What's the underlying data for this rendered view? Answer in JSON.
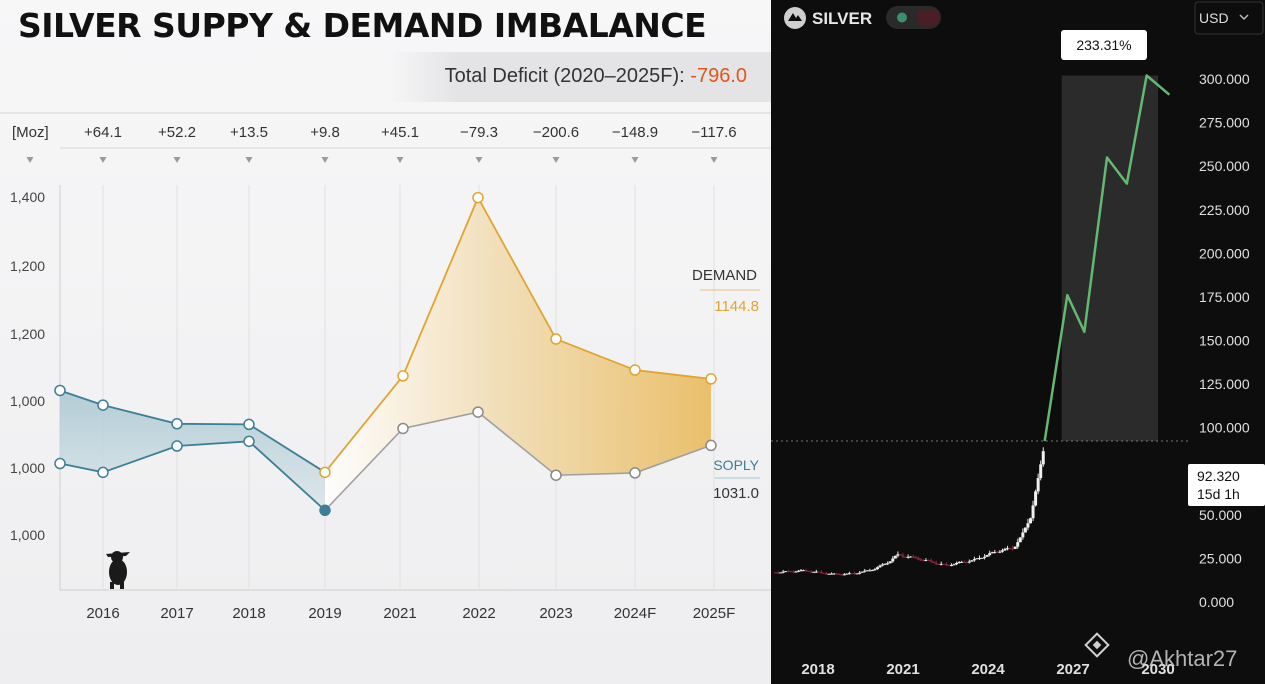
{
  "left_panel": {
    "title": "SILVER SUPPY & DEMAND IMBALANCE",
    "deficit_label": "Total Deficit (2020–2025F):",
    "deficit_value": "-796.0",
    "unit_label": "[Moz]",
    "demand_label": "DEMAND",
    "demand_last_value": "1144.8",
    "supply_label": "SOPLY",
    "supply_last_value": "1031.0"
  },
  "right_panel": {
    "symbol": "SILVER",
    "currency": "USD",
    "percent_badge": "233.31%",
    "price": "92.320",
    "countdown": "15d 1h",
    "watermark": "@Akhtar27"
  },
  "chart_data": [
    {
      "type": "area",
      "title": "SILVER SUPPY & DEMAND IMBALANCE",
      "ylabel": "[Moz]",
      "categories": [
        "2016",
        "2017",
        "2018",
        "2019",
        "2021",
        "2022",
        "2023",
        "2024F",
        "2025F"
      ],
      "ytick_labels": [
        "1,400",
        "1,200",
        "1,200",
        "1,000",
        "1,000",
        "1,000"
      ],
      "ylim": [
        900,
        1480
      ],
      "imbalance_labels": [
        "+64.1",
        "+52.2",
        "+13.5",
        "+9.8",
        "+45.1",
        "−79.3",
        "−200.6",
        "−148.9",
        "−117.6"
      ],
      "series": [
        {
          "name": "DEMAND",
          "x": [
            2015.4,
            2016,
            2017,
            2018,
            2019,
            2021,
            2022,
            2023,
            2024,
            2025
          ],
          "values": [
            1125,
            1100,
            1068,
            1067,
            985,
            1150,
            1455,
            1213,
            1160,
            1144.8
          ],
          "color": "#e0a530"
        },
        {
          "name": "SOPLY",
          "x": [
            2015.4,
            2016,
            2017,
            2018,
            2019,
            2021,
            2022,
            2023,
            2024,
            2025
          ],
          "values": [
            1000,
            985,
            1030,
            1038,
            920,
            1060,
            1088,
            980,
            984,
            1031.0
          ],
          "color": "#3d7f96"
        }
      ]
    },
    {
      "type": "line",
      "title": "SILVER",
      "x_tick_labels": [
        "2018",
        "2021",
        "2024",
        "2027",
        "2030"
      ],
      "ytick_labels": [
        "300.000",
        "275.000",
        "250.000",
        "225.000",
        "200.000",
        "175.000",
        "150.000",
        "125.000",
        "100.000",
        "75.000",
        "50.000",
        "25.000",
        "0.000"
      ],
      "ylim": [
        0,
        320
      ],
      "series": [
        {
          "name": "price",
          "x": [
            2016.5,
            2017.5,
            2018.5,
            2019.0,
            2019.5,
            2020.0,
            2020.5,
            2020.8,
            2021.5,
            2022.5,
            2023.5,
            2024.3,
            2024.9,
            2025.2,
            2025.5,
            2025.8,
            2026.0
          ],
          "values": [
            17,
            18,
            16,
            16,
            17,
            19,
            23,
            27,
            25,
            21,
            24,
            29,
            31,
            38,
            49,
            72,
            92.32
          ]
        },
        {
          "name": "projection",
          "x": [
            2026.0,
            2026.8,
            2027.4,
            2028.2,
            2028.9,
            2029.6,
            2030.4
          ],
          "values": [
            92.32,
            176,
            155,
            255,
            240,
            302,
            291
          ]
        }
      ],
      "current_price": 92.32,
      "percent_change": "233.31%"
    }
  ]
}
